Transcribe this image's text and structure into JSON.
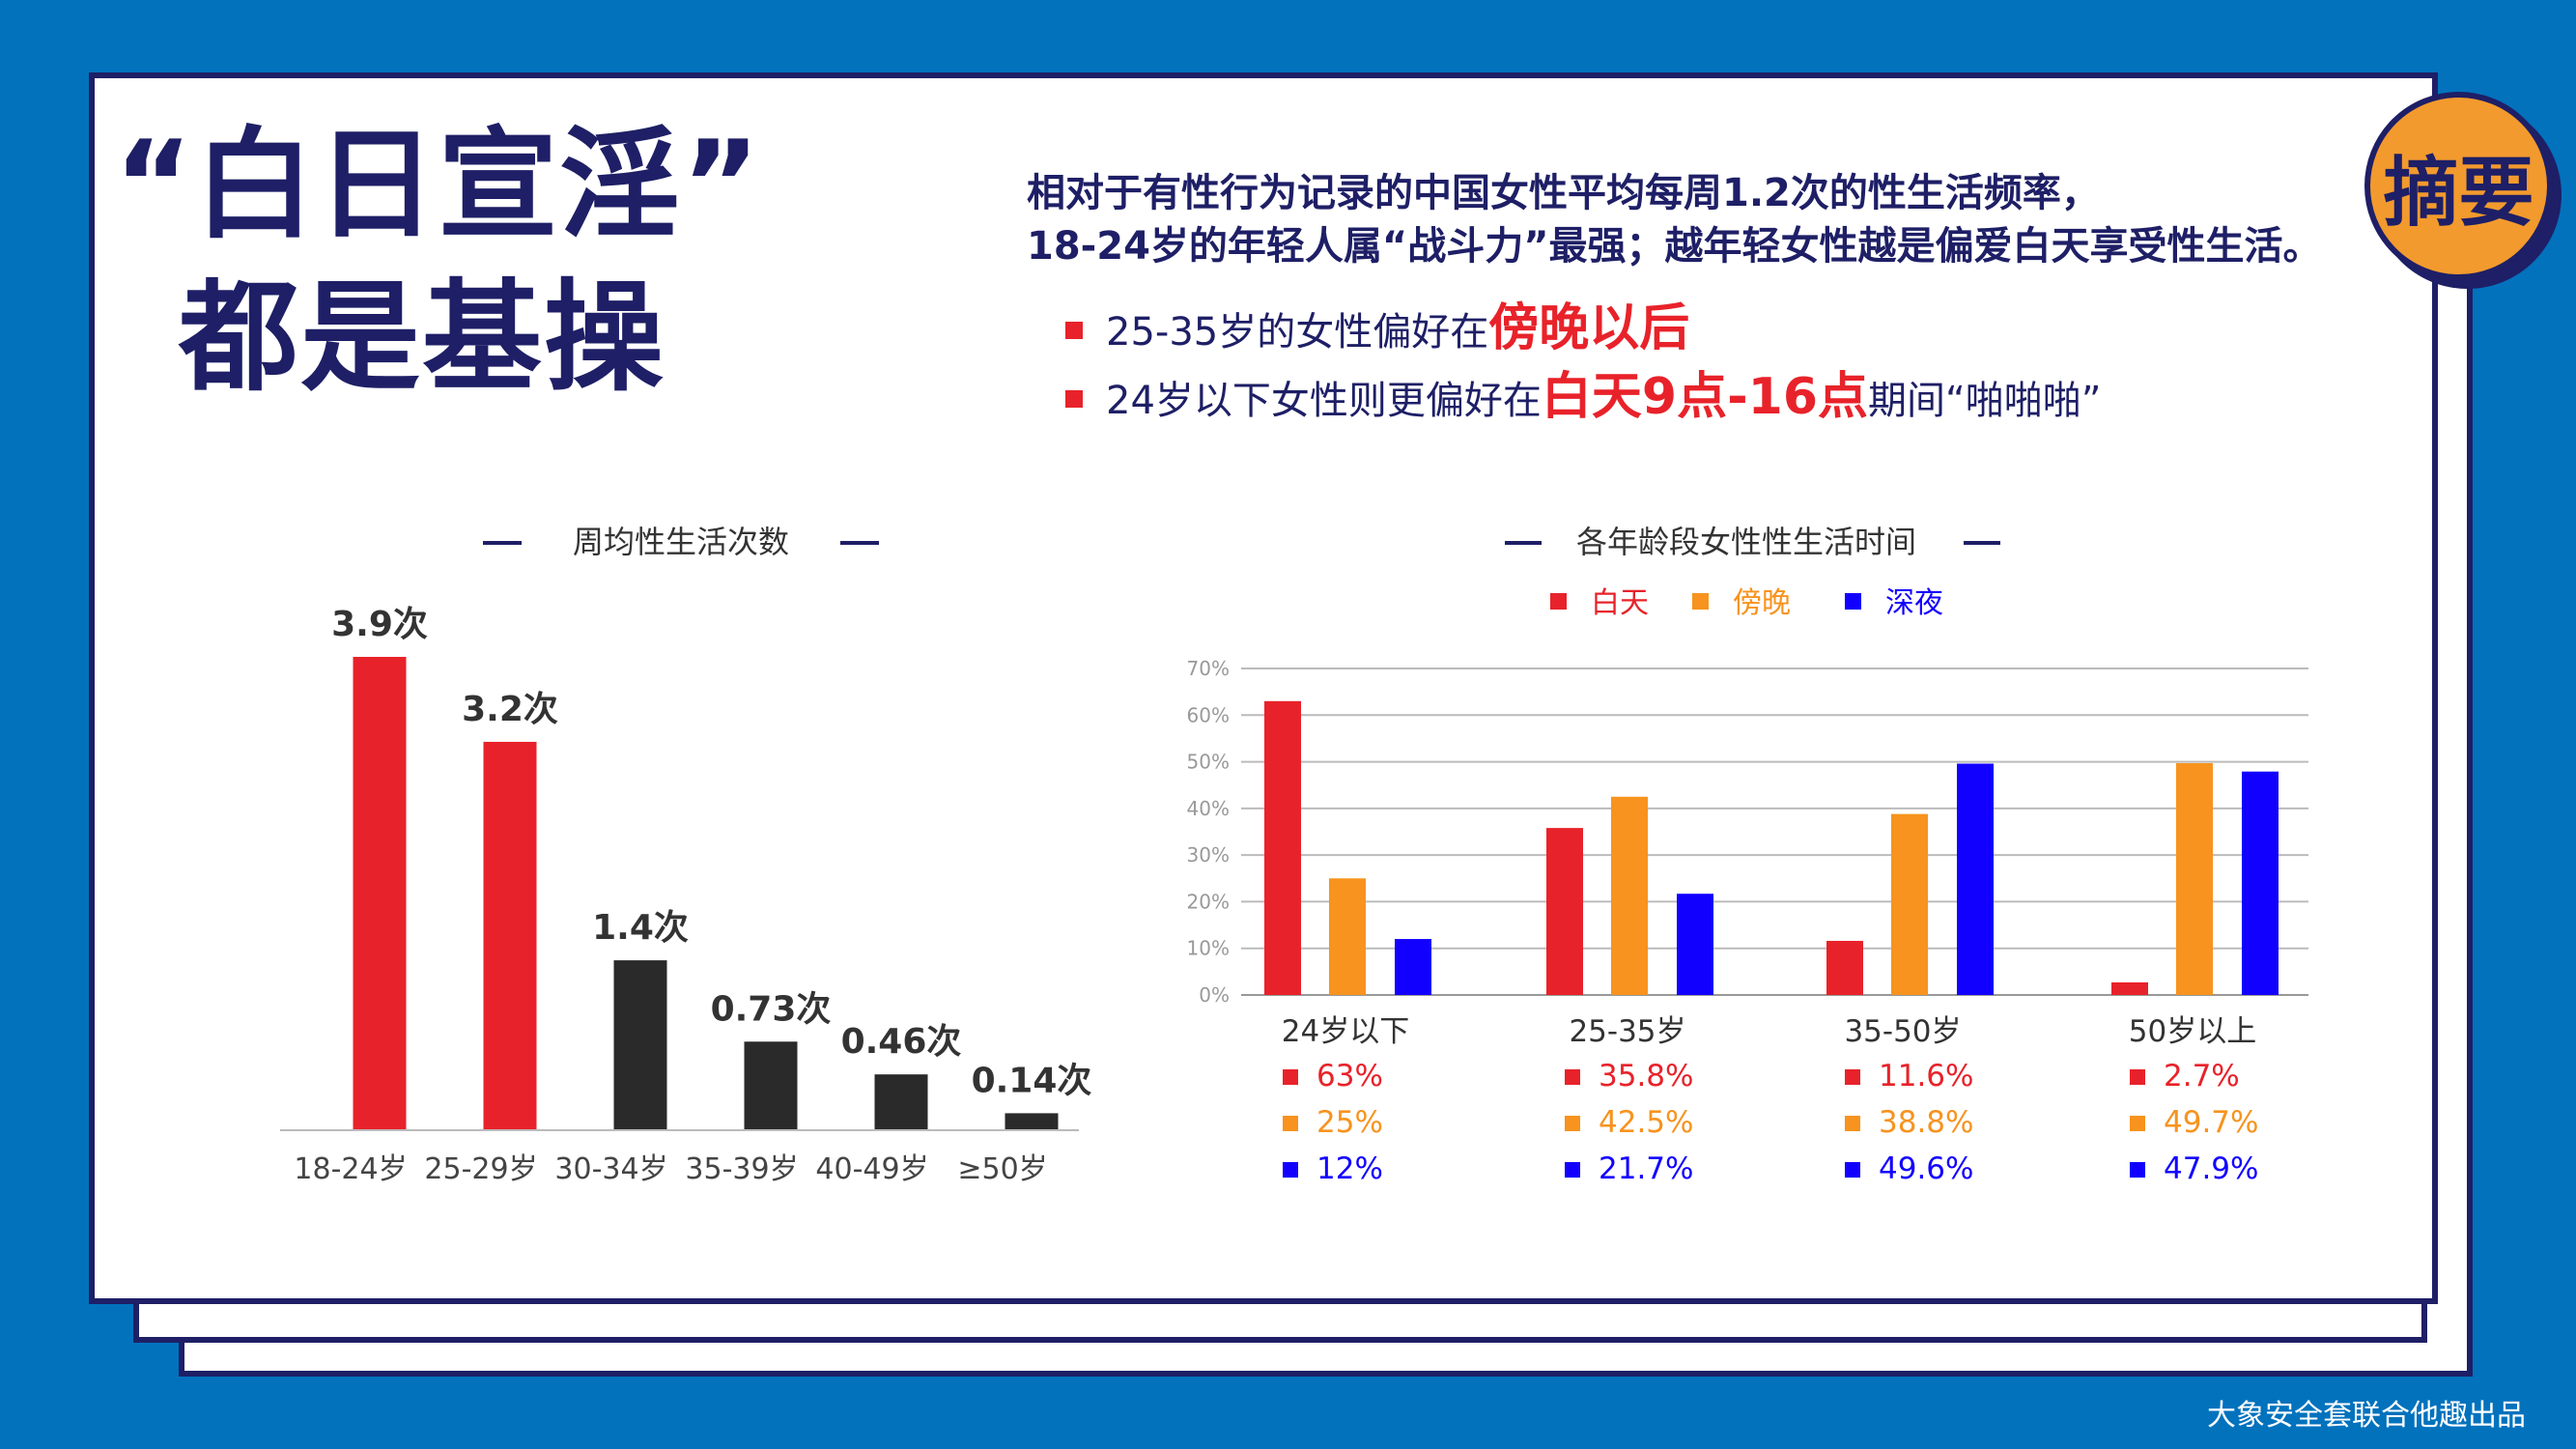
{
  "title": {
    "line1": "“白日宣淫”",
    "line2": "都是基操"
  },
  "badge": "摘要",
  "intro": {
    "line1": "相对于有性行为记录的中国女性平均每周1.2次的性生活频率，",
    "line2": "18-24岁的年轻人属“战斗力”最强；越年轻女性越是偏爱白天享受性生活。"
  },
  "bullets": [
    {
      "pre": "25-35岁的女性偏好在",
      "highlight": "傍晚以后",
      "post": ""
    },
    {
      "pre": "24岁以下女性则更偏好在",
      "highlight": "白天9点-16点",
      "post": "期间“啪啪啪”"
    }
  ],
  "footer": "大象安全套联合他趣出品",
  "colors": {
    "navy": "#1e1f66",
    "red": "#e8222a",
    "black": "#2a2a2a",
    "orange": "#f7931e",
    "blue": "#1200ff",
    "background": "#0272bd"
  },
  "chart_data": [
    {
      "type": "bar",
      "title": "周均性生活次数",
      "categories": [
        "18-24岁",
        "25-29岁",
        "30-34岁",
        "35-39岁",
        "40-49岁",
        "≥50岁"
      ],
      "values": [
        3.9,
        3.2,
        1.4,
        0.73,
        0.46,
        0.14
      ],
      "data_labels": [
        "3.9次",
        "3.2次",
        "1.4次",
        "0.73次",
        "0.46次",
        "0.14次"
      ],
      "bar_colors": [
        "#e8222a",
        "#e8222a",
        "#2a2a2a",
        "#2a2a2a",
        "#2a2a2a",
        "#2a2a2a"
      ],
      "ylim": [
        0,
        3.9
      ],
      "grid": false
    },
    {
      "type": "bar",
      "title": "各年龄段女性性生活时间",
      "categories": [
        "24岁以下",
        "25-35岁",
        "35-50岁",
        "50岁以上"
      ],
      "series": [
        {
          "name": "白天",
          "color": "#e8222a",
          "values": [
            63,
            35.8,
            11.6,
            2.7
          ]
        },
        {
          "name": "傍晚",
          "color": "#f7931e",
          "values": [
            25,
            42.5,
            38.8,
            49.7
          ]
        },
        {
          "name": "深夜",
          "color": "#1200ff",
          "values": [
            12,
            21.7,
            49.6,
            47.9
          ]
        }
      ],
      "value_labels": [
        [
          "63%",
          "35.8%",
          "11.6%",
          "2.7%"
        ],
        [
          "25%",
          "42.5%",
          "38.8%",
          "49.7%"
        ],
        [
          "12%",
          "21.7%",
          "49.6%",
          "47.9%"
        ]
      ],
      "y_ticks": [
        "0%",
        "10%",
        "20%",
        "30%",
        "40%",
        "50%",
        "60%",
        "70%"
      ],
      "ylim": [
        0,
        70
      ],
      "grid": true,
      "legend_position": "top-center"
    }
  ]
}
